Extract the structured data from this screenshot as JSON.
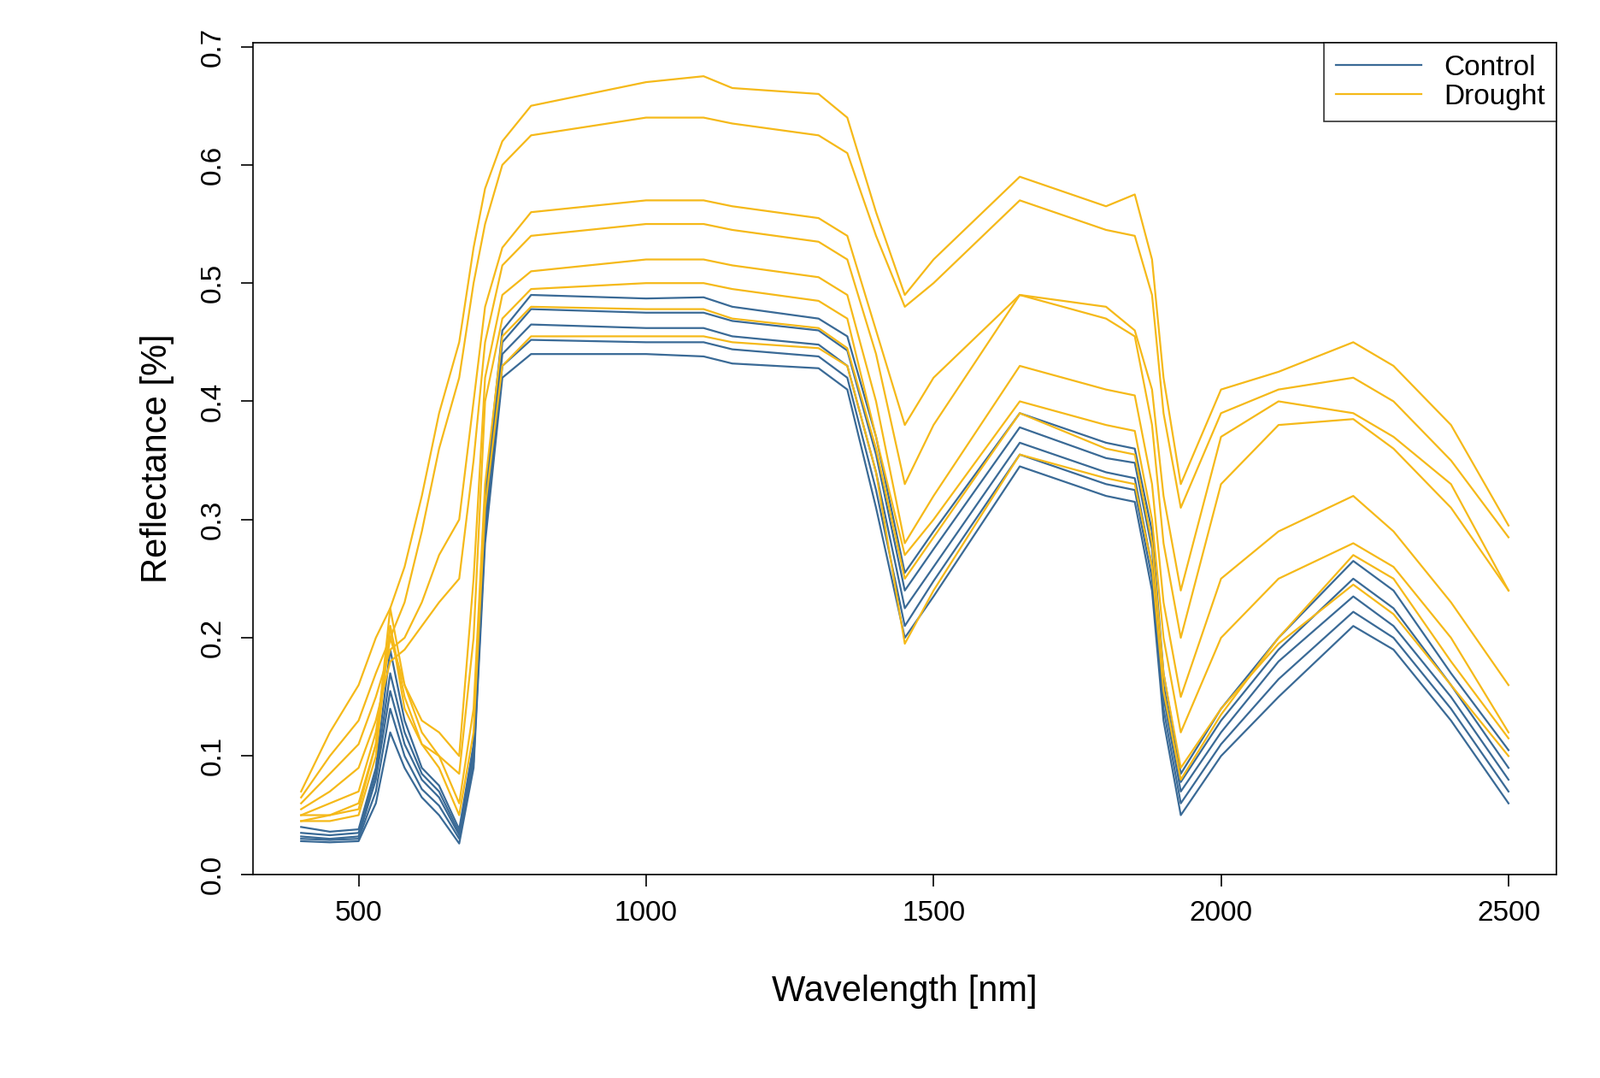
{
  "chart_data": {
    "type": "line",
    "x_label": "Wavelength [nm]",
    "y_label": "Reflectance [%]",
    "x": [
      400,
      450,
      500,
      530,
      555,
      580,
      610,
      640,
      675,
      700,
      720,
      750,
      800,
      1000,
      1100,
      1150,
      1300,
      1350,
      1400,
      1450,
      1500,
      1650,
      1800,
      1850,
      1880,
      1900,
      1930,
      2000,
      2100,
      2230,
      2300,
      2400,
      2500
    ],
    "xlim": [
      316,
      2584
    ],
    "xticks": [
      500,
      1000,
      1500,
      2000,
      2500
    ],
    "ylim": [
      0,
      0.703
    ],
    "yticks": [
      {
        "value": 0,
        "label": "0.0"
      },
      0.1,
      0.2,
      0.3,
      0.4,
      0.5,
      0.6,
      0.7
    ],
    "legend": "upper right",
    "grid": false,
    "series": [
      {
        "name": "Control",
        "color": "#3a6a96",
        "values": [
          0.032,
          0.03,
          0.032,
          0.08,
          0.155,
          0.11,
          0.08,
          0.065,
          0.033,
          0.1,
          0.3,
          0.44,
          0.465,
          0.462,
          0.462,
          0.455,
          0.448,
          0.43,
          0.34,
          0.225,
          0.26,
          0.365,
          0.34,
          0.335,
          0.26,
          0.15,
          0.07,
          0.12,
          0.18,
          0.235,
          0.21,
          0.15,
          0.08
        ]
      },
      {
        "name": "Control",
        "color": "#3a6a96",
        "values": [
          0.04,
          0.036,
          0.038,
          0.09,
          0.19,
          0.13,
          0.09,
          0.075,
          0.038,
          0.11,
          0.32,
          0.46,
          0.49,
          0.487,
          0.488,
          0.48,
          0.47,
          0.455,
          0.37,
          0.255,
          0.29,
          0.39,
          0.365,
          0.36,
          0.29,
          0.17,
          0.085,
          0.14,
          0.2,
          0.265,
          0.24,
          0.17,
          0.105
        ]
      },
      {
        "name": "Control",
        "color": "#3a6a96",
        "values": [
          0.028,
          0.027,
          0.028,
          0.06,
          0.12,
          0.09,
          0.065,
          0.05,
          0.026,
          0.09,
          0.28,
          0.42,
          0.44,
          0.44,
          0.438,
          0.432,
          0.428,
          0.41,
          0.31,
          0.2,
          0.235,
          0.345,
          0.32,
          0.315,
          0.24,
          0.13,
          0.05,
          0.1,
          0.15,
          0.21,
          0.19,
          0.13,
          0.06
        ]
      },
      {
        "name": "Control",
        "color": "#3a6a96",
        "values": [
          0.035,
          0.033,
          0.035,
          0.085,
          0.17,
          0.12,
          0.085,
          0.07,
          0.035,
          0.105,
          0.31,
          0.45,
          0.478,
          0.475,
          0.475,
          0.468,
          0.46,
          0.443,
          0.355,
          0.24,
          0.275,
          0.378,
          0.352,
          0.348,
          0.275,
          0.16,
          0.078,
          0.13,
          0.19,
          0.25,
          0.225,
          0.16,
          0.09
        ]
      },
      {
        "name": "Control",
        "color": "#3a6a96",
        "values": [
          0.03,
          0.029,
          0.03,
          0.07,
          0.14,
          0.1,
          0.072,
          0.058,
          0.03,
          0.095,
          0.29,
          0.43,
          0.452,
          0.45,
          0.45,
          0.444,
          0.438,
          0.42,
          0.325,
          0.21,
          0.248,
          0.355,
          0.33,
          0.325,
          0.25,
          0.14,
          0.06,
          0.11,
          0.165,
          0.222,
          0.2,
          0.14,
          0.07
        ]
      },
      {
        "name": "Drought",
        "color": "#f5b919",
        "values": [
          0.05,
          0.05,
          0.055,
          0.11,
          0.225,
          0.16,
          0.12,
          0.1,
          0.06,
          0.14,
          0.33,
          0.455,
          0.48,
          0.478,
          0.478,
          0.47,
          0.462,
          0.445,
          0.36,
          0.25,
          0.285,
          0.39,
          0.36,
          0.355,
          0.28,
          0.17,
          0.09,
          0.14,
          0.195,
          0.245,
          0.22,
          0.16,
          0.1
        ]
      },
      {
        "name": "Drought",
        "color": "#f5b919",
        "values": [
          0.045,
          0.045,
          0.05,
          0.1,
          0.21,
          0.15,
          0.11,
          0.09,
          0.05,
          0.12,
          0.31,
          0.43,
          0.455,
          0.455,
          0.455,
          0.45,
          0.445,
          0.43,
          0.34,
          0.195,
          0.24,
          0.355,
          0.335,
          0.33,
          0.26,
          0.155,
          0.08,
          0.135,
          0.2,
          0.27,
          0.25,
          0.18,
          0.115
        ]
      },
      {
        "name": "Drought",
        "color": "#f5b919",
        "values": [
          0.07,
          0.12,
          0.16,
          0.2,
          0.225,
          0.26,
          0.32,
          0.39,
          0.45,
          0.53,
          0.58,
          0.62,
          0.65,
          0.67,
          0.675,
          0.665,
          0.66,
          0.64,
          0.56,
          0.49,
          0.52,
          0.59,
          0.565,
          0.575,
          0.52,
          0.42,
          0.33,
          0.41,
          0.425,
          0.45,
          0.43,
          0.38,
          0.295
        ]
      },
      {
        "name": "Drought",
        "color": "#f5b919",
        "values": [
          0.065,
          0.1,
          0.13,
          0.17,
          0.2,
          0.23,
          0.29,
          0.36,
          0.42,
          0.5,
          0.55,
          0.6,
          0.625,
          0.64,
          0.64,
          0.635,
          0.625,
          0.61,
          0.54,
          0.48,
          0.5,
          0.57,
          0.545,
          0.54,
          0.49,
          0.39,
          0.31,
          0.39,
          0.41,
          0.42,
          0.4,
          0.35,
          0.285
        ]
      },
      {
        "name": "Drought",
        "color": "#f5b919",
        "values": [
          0.06,
          0.085,
          0.11,
          0.15,
          0.19,
          0.2,
          0.23,
          0.27,
          0.3,
          0.4,
          0.48,
          0.53,
          0.56,
          0.57,
          0.57,
          0.565,
          0.555,
          0.54,
          0.46,
          0.38,
          0.42,
          0.49,
          0.48,
          0.46,
          0.41,
          0.32,
          0.24,
          0.37,
          0.4,
          0.39,
          0.37,
          0.33,
          0.24
        ]
      },
      {
        "name": "Drought",
        "color": "#f5b919",
        "values": [
          0.055,
          0.07,
          0.09,
          0.13,
          0.18,
          0.19,
          0.21,
          0.23,
          0.25,
          0.35,
          0.45,
          0.515,
          0.54,
          0.55,
          0.55,
          0.545,
          0.535,
          0.52,
          0.44,
          0.33,
          0.38,
          0.49,
          0.47,
          0.455,
          0.38,
          0.28,
          0.2,
          0.33,
          0.38,
          0.385,
          0.36,
          0.31,
          0.24
        ]
      },
      {
        "name": "Drought",
        "color": "#f5b919",
        "values": [
          0.05,
          0.06,
          0.07,
          0.12,
          0.2,
          0.16,
          0.13,
          0.12,
          0.1,
          0.25,
          0.42,
          0.49,
          0.51,
          0.52,
          0.52,
          0.515,
          0.505,
          0.49,
          0.4,
          0.28,
          0.32,
          0.43,
          0.41,
          0.405,
          0.33,
          0.23,
          0.15,
          0.25,
          0.29,
          0.32,
          0.29,
          0.23,
          0.16
        ]
      },
      {
        "name": "Drought",
        "color": "#f5b919",
        "values": [
          0.045,
          0.05,
          0.06,
          0.11,
          0.21,
          0.14,
          0.11,
          0.1,
          0.085,
          0.2,
          0.4,
          0.47,
          0.495,
          0.5,
          0.5,
          0.495,
          0.485,
          0.47,
          0.37,
          0.27,
          0.3,
          0.4,
          0.38,
          0.375,
          0.3,
          0.2,
          0.12,
          0.2,
          0.25,
          0.28,
          0.26,
          0.2,
          0.12
        ]
      }
    ]
  }
}
